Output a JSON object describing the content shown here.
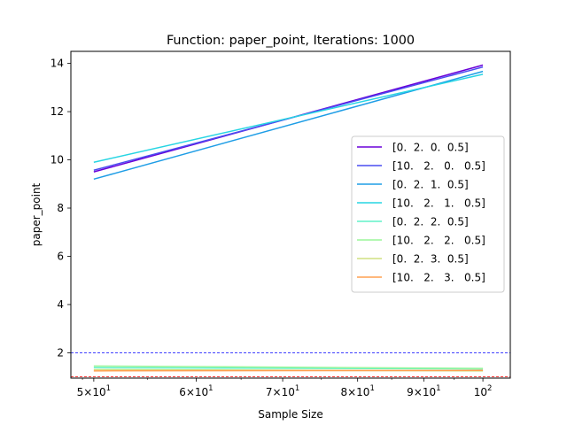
{
  "chart_data": {
    "type": "line",
    "title": "Function: paper_point, Iterations: 1000",
    "xlabel": "Sample Size",
    "ylabel": "paper_point",
    "xscale": "log",
    "xlim": [
      48,
      105
    ],
    "ylim": [
      0.95,
      14.5
    ],
    "x_ticks": [
      {
        "value": 50,
        "base": "5×10",
        "exp": "1"
      },
      {
        "value": 60,
        "base": "6×10",
        "exp": "1"
      },
      {
        "value": 70,
        "base": "7×10",
        "exp": "1"
      },
      {
        "value": 80,
        "base": "8×10",
        "exp": "1"
      },
      {
        "value": 90,
        "base": "9×10",
        "exp": "1"
      },
      {
        "value": 100,
        "base": "10",
        "exp": "2"
      }
    ],
    "y_ticks": [
      2,
      4,
      6,
      8,
      10,
      12,
      14
    ],
    "x": [
      50,
      100
    ],
    "series": [
      {
        "name": "[0.  2.  0.  0.5]",
        "color": "#6a00d9",
        "values": [
          9.5,
          13.93
        ]
      },
      {
        "name": "[10.   2.   0.   0.5]",
        "color": "#4a4df0",
        "values": [
          9.57,
          13.85
        ]
      },
      {
        "name": "[0.  2.  1.  0.5]",
        "color": "#1e9de6",
        "values": [
          9.2,
          13.67
        ]
      },
      {
        "name": "[10.   2.   1.   0.5]",
        "color": "#27d5e3",
        "values": [
          9.9,
          13.55
        ]
      },
      {
        "name": "[0.  2.  2.  0.5]",
        "color": "#60f2c8",
        "values": [
          1.38,
          1.33
        ]
      },
      {
        "name": "[10.   2.   2.   0.5]",
        "color": "#9cf59a",
        "values": [
          1.45,
          1.35
        ]
      },
      {
        "name": "[0.  2.  3.  0.5]",
        "color": "#cfe080",
        "values": [
          1.3,
          1.25
        ]
      },
      {
        "name": "[10.   2.   3.   0.5]",
        "color": "#ffa050",
        "values": [
          1.25,
          1.27
        ]
      }
    ],
    "reference_lines": [
      {
        "y": 2.0,
        "color": "#0000ff",
        "style": "dashed"
      },
      {
        "y": 1.0,
        "color": "#ff0000",
        "style": "dashed"
      }
    ],
    "legend": "center-right",
    "grid": false
  }
}
